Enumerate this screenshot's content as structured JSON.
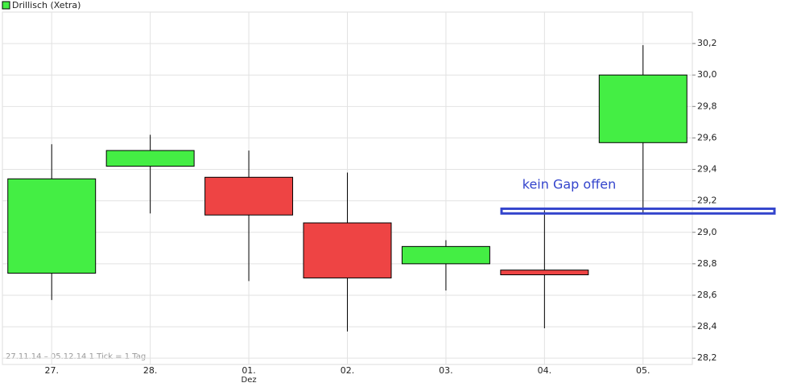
{
  "chart_data": {
    "type": "candlestick",
    "legend": "Drillisch (Xetra)",
    "legend_color": "#44ee44",
    "categories": [
      "27.",
      "28.",
      "01.",
      "02.",
      "03.",
      "04.",
      "05."
    ],
    "month_labels": [
      null,
      null,
      "Dez",
      null,
      null,
      null,
      null
    ],
    "open": [
      28.74,
      29.42,
      29.35,
      29.06,
      28.8,
      28.76,
      29.57
    ],
    "high": [
      29.56,
      29.62,
      29.52,
      29.38,
      28.95,
      29.14,
      30.19
    ],
    "low": [
      28.57,
      29.12,
      28.69,
      28.37,
      28.63,
      28.39,
      29.12
    ],
    "close": [
      29.34,
      29.52,
      29.11,
      28.71,
      28.91,
      28.73,
      30.0
    ],
    "up_color": "#44ee44",
    "down_color": "#ee4444",
    "ylim": [
      28.16,
      30.4
    ],
    "yticks": [
      {
        "value": 28.2,
        "label": "28,2"
      },
      {
        "value": 28.4,
        "label": "28,4"
      },
      {
        "value": 28.6,
        "label": "28,6"
      },
      {
        "value": 28.8,
        "label": "28,8"
      },
      {
        "value": 29.0,
        "label": "29,0"
      },
      {
        "value": 29.2,
        "label": "29,2"
      },
      {
        "value": 29.4,
        "label": "29,4"
      },
      {
        "value": 29.6,
        "label": "29,6"
      },
      {
        "value": 29.8,
        "label": "29,8"
      },
      {
        "value": 30.0,
        "label": "30,0"
      },
      {
        "value": 30.2,
        "label": "30,2"
      }
    ],
    "grid": true,
    "footer": "27.11.14 – 05.12.14   1 Tick = 1 Tag",
    "annotation": {
      "text": "kein Gap offen",
      "band": [
        29.12,
        29.15
      ],
      "color": "#3344cc"
    }
  }
}
